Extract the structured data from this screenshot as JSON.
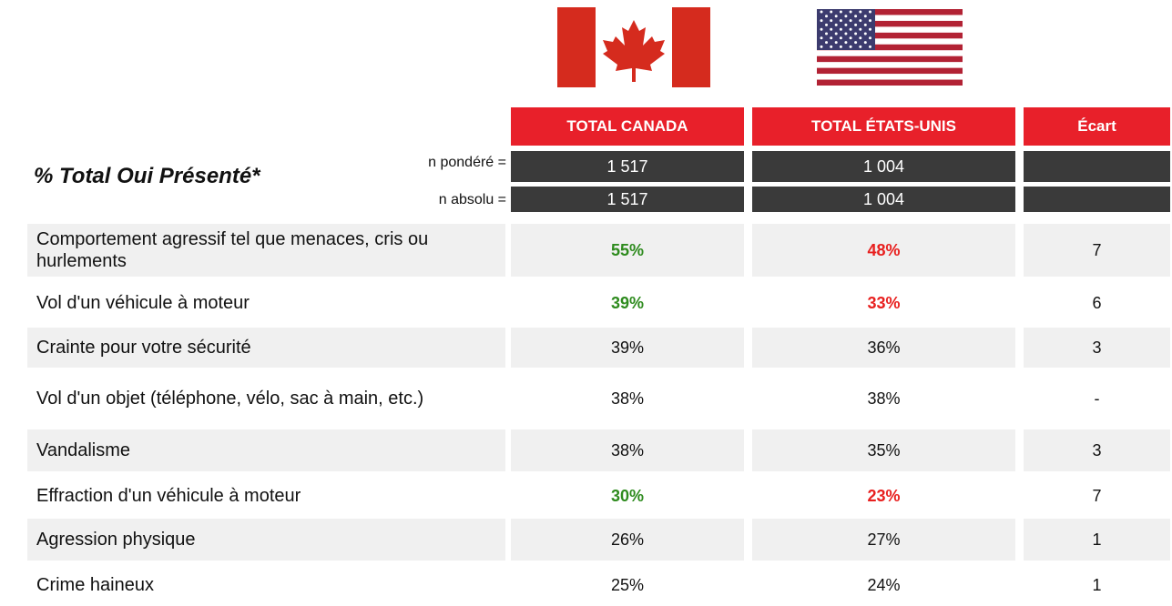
{
  "title": "% Total Oui Présenté*",
  "header": {
    "columns": [
      "TOTAL CANADA",
      "TOTAL ÉTATS-UNIS",
      "Écart"
    ]
  },
  "bases": [
    {
      "label": "n pondéré =",
      "values": [
        "1 517",
        "1 004"
      ]
    },
    {
      "label": "n absolu =",
      "values": [
        "1 517",
        "1 004"
      ]
    }
  ],
  "highlight_colors": {
    "canada": "#2e8b1e",
    "usa": "#e8201f"
  },
  "rows": [
    {
      "label": "Comportement agressif tel que menaces, cris ou hurlements",
      "canada": "55%",
      "usa": "48%",
      "ecart": "7",
      "highlight": true
    },
    {
      "label": "Vol d'un véhicule à moteur",
      "canada": "39%",
      "usa": "33%",
      "ecart": "6",
      "highlight": true
    },
    {
      "label": "Crainte pour votre sécurité",
      "canada": "39%",
      "usa": "36%",
      "ecart": "3",
      "highlight": false
    },
    {
      "label": "Vol d'un objet (téléphone, vélo, sac à main, etc.)",
      "canada": "38%",
      "usa": "38%",
      "ecart": "-",
      "highlight": false
    },
    {
      "label": "Vandalisme",
      "canada": "38%",
      "usa": "35%",
      "ecart": "3",
      "highlight": false
    },
    {
      "label": "Effraction d'un véhicule à moteur",
      "canada": "30%",
      "usa": "23%",
      "ecart": "7",
      "highlight": true
    },
    {
      "label": "Agression physique",
      "canada": "26%",
      "usa": "27%",
      "ecart": "1",
      "highlight": false
    },
    {
      "label": "Crime haineux",
      "canada": "25%",
      "usa": "24%",
      "ecart": "1",
      "highlight": false
    }
  ]
}
